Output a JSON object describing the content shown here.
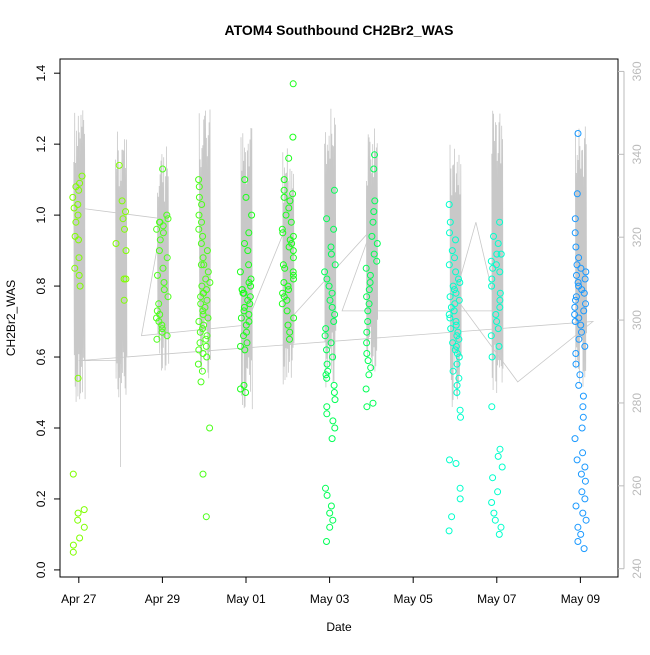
{
  "chart_data": {
    "type": "scatter",
    "title": "ATOM4 Southbound CH2Br2_WAS",
    "xlabel": "Date",
    "ylabel": "CH2Br2_WAS",
    "x_ticks": [
      "Apr 27",
      "Apr 29",
      "May 01",
      "May 03",
      "May 05",
      "May 07",
      "May 09"
    ],
    "y_ticks": [
      "0.0",
      "0.2",
      "0.4",
      "0.6",
      "0.8",
      "1.0",
      "1.2",
      "1.4"
    ],
    "y2_ticks": [
      "240",
      "260",
      "280",
      "300",
      "320",
      "340",
      "360"
    ],
    "x_range_days_from_apr27": [
      -0.45,
      12.9
    ],
    "ylim": [
      -0.02,
      1.44
    ],
    "y2lim": [
      238,
      363
    ],
    "grid": false,
    "legend": "none",
    "series": [
      {
        "color": "#7fff00",
        "x": [
          0,
          0,
          0,
          0,
          0,
          0,
          0,
          0,
          0,
          0,
          0,
          0,
          0,
          0,
          0,
          0,
          0,
          0,
          0,
          0,
          0,
          0,
          0,
          0,
          1,
          1,
          1,
          1,
          1,
          1,
          1,
          1,
          1,
          1
        ],
        "y": [
          1.11,
          1.09,
          1.07,
          1.05,
          1.03,
          1.02,
          1.0,
          0.98,
          0.94,
          0.93,
          0.88,
          0.85,
          0.83,
          0.8,
          0.54,
          0.27,
          0.17,
          0.16,
          0.14,
          0.12,
          0.09,
          0.07,
          0.05,
          1.08,
          1.14,
          1.04,
          1.01,
          0.96,
          0.92,
          0.9,
          0.82,
          0.82,
          0.76,
          0.99
        ]
      },
      {
        "color": "#4cff1a",
        "x": [
          2,
          2,
          2,
          2,
          2,
          2,
          2,
          2,
          2,
          2,
          2,
          2,
          2,
          2,
          2,
          2,
          2,
          2,
          2,
          2,
          2,
          2,
          2,
          2,
          2,
          2,
          3,
          3,
          3,
          3,
          3,
          3,
          3,
          3,
          3,
          3,
          3,
          3,
          3,
          3,
          3,
          3,
          3,
          3,
          3,
          3,
          3,
          3,
          3,
          3,
          3,
          3,
          3,
          3,
          3,
          3,
          3,
          3,
          3,
          3,
          3,
          3,
          3,
          3,
          3,
          3,
          3,
          3,
          3,
          3
        ],
        "y": [
          1.13,
          1.0,
          0.99,
          0.98,
          0.97,
          0.96,
          0.95,
          0.93,
          0.9,
          0.88,
          0.85,
          0.83,
          0.81,
          0.79,
          0.77,
          0.75,
          0.73,
          0.72,
          0.71,
          0.7,
          0.69,
          0.68,
          0.67,
          0.66,
          0.65,
          0.98,
          1.1,
          1.08,
          1.05,
          1.03,
          1.0,
          0.98,
          0.96,
          0.94,
          0.92,
          0.9,
          0.88,
          0.86,
          0.84,
          0.82,
          0.8,
          0.79,
          0.78,
          0.77,
          0.76,
          0.75,
          0.74,
          0.73,
          0.72,
          0.71,
          0.7,
          0.69,
          0.68,
          0.67,
          0.66,
          0.65,
          0.64,
          0.63,
          0.62,
          0.61,
          0.6,
          0.58,
          0.56,
          0.53,
          0.4,
          0.27,
          0.15,
          0.86,
          0.81,
          0.78
        ]
      },
      {
        "color": "#1aff1a",
        "x": [
          4,
          4,
          4,
          4,
          4,
          4,
          4,
          4,
          4,
          4,
          4,
          4,
          4,
          4,
          4,
          4,
          4,
          4,
          4,
          4,
          4,
          4,
          4,
          4,
          4,
          4,
          4,
          4,
          4,
          4,
          4,
          4,
          5,
          5,
          5,
          5,
          5,
          5,
          5,
          5,
          5,
          5,
          5,
          5,
          5,
          5,
          5,
          5,
          5,
          5,
          5,
          5,
          5,
          5,
          5,
          5,
          5,
          5,
          5,
          5,
          5,
          5,
          5,
          5,
          5,
          5,
          5,
          5
        ],
        "y": [
          1.1,
          1.05,
          1.0,
          0.95,
          0.92,
          0.9,
          0.86,
          0.84,
          0.82,
          0.81,
          0.8,
          0.79,
          0.78,
          0.78,
          0.77,
          0.76,
          0.75,
          0.74,
          0.73,
          0.72,
          0.71,
          0.7,
          0.69,
          0.67,
          0.66,
          0.64,
          0.63,
          0.62,
          0.52,
          0.51,
          0.5,
          0.79,
          1.37,
          1.22,
          1.16,
          1.1,
          1.07,
          1.06,
          1.05,
          1.04,
          1.02,
          1.0,
          0.98,
          0.96,
          0.95,
          0.94,
          0.93,
          0.92,
          0.91,
          0.9,
          0.88,
          0.86,
          0.85,
          0.84,
          0.83,
          0.82,
          0.81,
          0.8,
          0.79,
          0.78,
          0.77,
          0.76,
          0.75,
          0.73,
          0.71,
          0.69,
          0.67,
          0.65
        ]
      },
      {
        "color": "#00ff55",
        "x": [
          6,
          6,
          6,
          6,
          6,
          6,
          6,
          6,
          6,
          6,
          6,
          6,
          6,
          6,
          6,
          6,
          6,
          6,
          6,
          6,
          6,
          6,
          6,
          6,
          6,
          6,
          6,
          6,
          6,
          6,
          6,
          6,
          6,
          6,
          6,
          6,
          6,
          6,
          7,
          7,
          7,
          7,
          7,
          7,
          7,
          7,
          7,
          7,
          7,
          7,
          7,
          7,
          7,
          7,
          7,
          7,
          7,
          7,
          7,
          7,
          7,
          7,
          7,
          7
        ],
        "y": [
          1.07,
          0.99,
          0.96,
          0.91,
          0.89,
          0.86,
          0.84,
          0.82,
          0.8,
          0.78,
          0.76,
          0.74,
          0.72,
          0.7,
          0.68,
          0.66,
          0.64,
          0.62,
          0.6,
          0.58,
          0.56,
          0.55,
          0.54,
          0.52,
          0.5,
          0.48,
          0.46,
          0.44,
          0.42,
          0.4,
          0.37,
          0.23,
          0.21,
          0.18,
          0.16,
          0.14,
          0.12,
          0.08,
          1.17,
          1.13,
          1.04,
          1.01,
          0.98,
          0.94,
          0.92,
          0.89,
          0.87,
          0.85,
          0.83,
          0.81,
          0.79,
          0.77,
          0.75,
          0.73,
          0.7,
          0.67,
          0.64,
          0.61,
          0.59,
          0.57,
          0.55,
          0.51,
          0.47,
          0.46
        ]
      },
      {
        "color": "#00ffcc",
        "x": [
          9,
          9,
          9,
          9,
          9,
          9,
          9,
          9,
          9,
          9,
          9,
          9,
          9,
          9,
          9,
          9,
          9,
          9,
          9,
          9,
          9,
          9,
          9,
          9,
          9,
          9,
          9,
          9,
          9,
          9,
          9,
          9,
          9,
          9,
          9,
          9,
          9,
          9,
          9,
          9,
          9,
          9,
          9,
          9,
          10,
          10,
          10,
          10,
          10,
          10,
          10,
          10,
          10,
          10,
          10,
          10,
          10,
          10,
          10,
          10,
          10,
          10,
          10,
          10,
          10,
          10,
          10,
          10,
          10,
          10,
          10,
          10,
          10,
          10,
          10
        ],
        "y": [
          1.03,
          0.98,
          0.95,
          0.93,
          0.9,
          0.88,
          0.86,
          0.84,
          0.82,
          0.81,
          0.8,
          0.79,
          0.78,
          0.77,
          0.76,
          0.75,
          0.74,
          0.73,
          0.72,
          0.71,
          0.7,
          0.69,
          0.68,
          0.67,
          0.66,
          0.65,
          0.64,
          0.63,
          0.62,
          0.61,
          0.6,
          0.58,
          0.56,
          0.54,
          0.52,
          0.5,
          0.45,
          0.43,
          0.31,
          0.3,
          0.23,
          0.2,
          0.15,
          0.11,
          0.98,
          0.94,
          0.92,
          0.89,
          0.87,
          0.85,
          0.84,
          0.82,
          0.8,
          0.78,
          0.76,
          0.74,
          0.72,
          0.7,
          0.68,
          0.66,
          0.63,
          0.6,
          0.46,
          0.34,
          0.32,
          0.29,
          0.26,
          0.22,
          0.19,
          0.16,
          0.14,
          0.12,
          0.89,
          0.86,
          0.1
        ]
      },
      {
        "color": "#1a99ff",
        "x": [
          12,
          12,
          12,
          12,
          12,
          12,
          12,
          12,
          12,
          12,
          12,
          12,
          12,
          12,
          12,
          12,
          12,
          12,
          12,
          12,
          12,
          12,
          12,
          12,
          12,
          12,
          12,
          12,
          12,
          12,
          12,
          12,
          12,
          12,
          12,
          12,
          12,
          12,
          12,
          12,
          12,
          12,
          12,
          12,
          12,
          12,
          12,
          12,
          12,
          12
        ],
        "y": [
          1.23,
          1.06,
          0.99,
          0.95,
          0.91,
          0.88,
          0.86,
          0.85,
          0.84,
          0.83,
          0.82,
          0.81,
          0.8,
          0.79,
          0.78,
          0.77,
          0.76,
          0.75,
          0.74,
          0.73,
          0.72,
          0.71,
          0.7,
          0.69,
          0.67,
          0.65,
          0.63,
          0.61,
          0.58,
          0.55,
          0.52,
          0.49,
          0.46,
          0.43,
          0.4,
          0.37,
          0.33,
          0.31,
          0.29,
          0.27,
          0.25,
          0.22,
          0.2,
          0.18,
          0.16,
          0.14,
          0.12,
          0.1,
          0.08,
          0.06
        ]
      }
    ]
  }
}
